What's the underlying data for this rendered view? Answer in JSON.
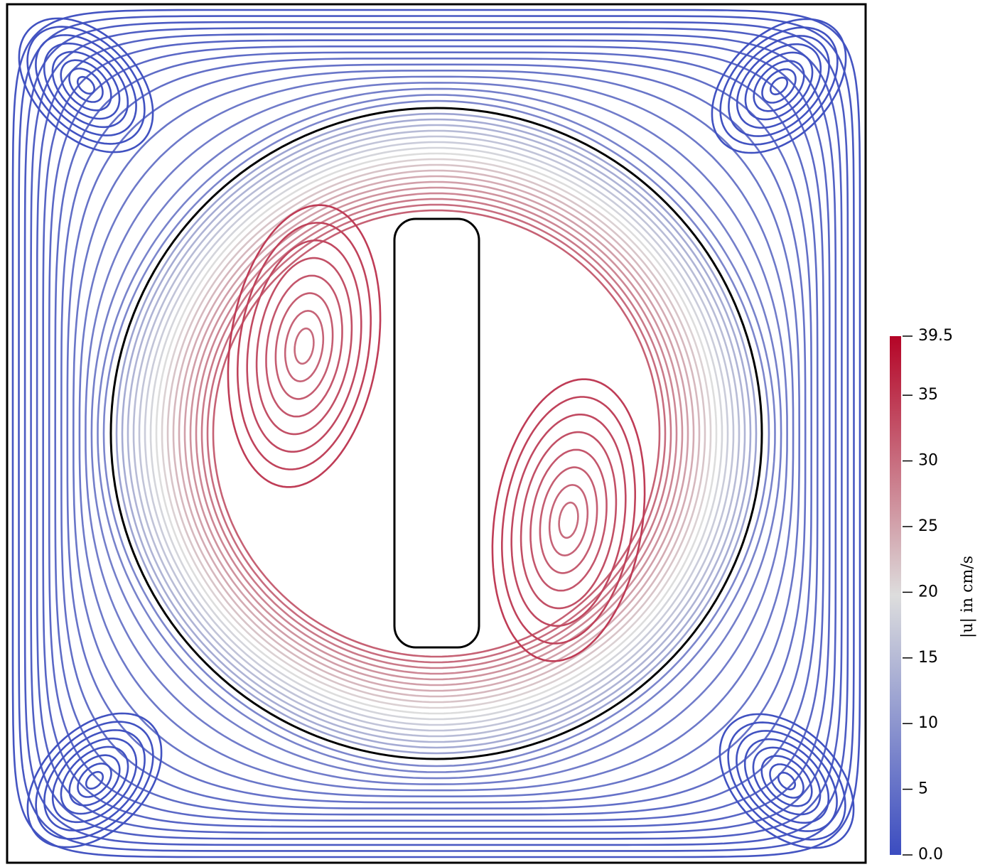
{
  "chart_data": {
    "type": "streamline",
    "colorbar_label": "|u| in cm/s",
    "clim": [
      0,
      39.5
    ],
    "cticks": [
      {
        "value": 0,
        "label": "0.0"
      },
      5,
      10,
      15,
      20,
      25,
      30,
      35,
      39.5
    ],
    "colormap": [
      "#3b4cc0",
      "#dddddd",
      "#b40426"
    ]
  }
}
